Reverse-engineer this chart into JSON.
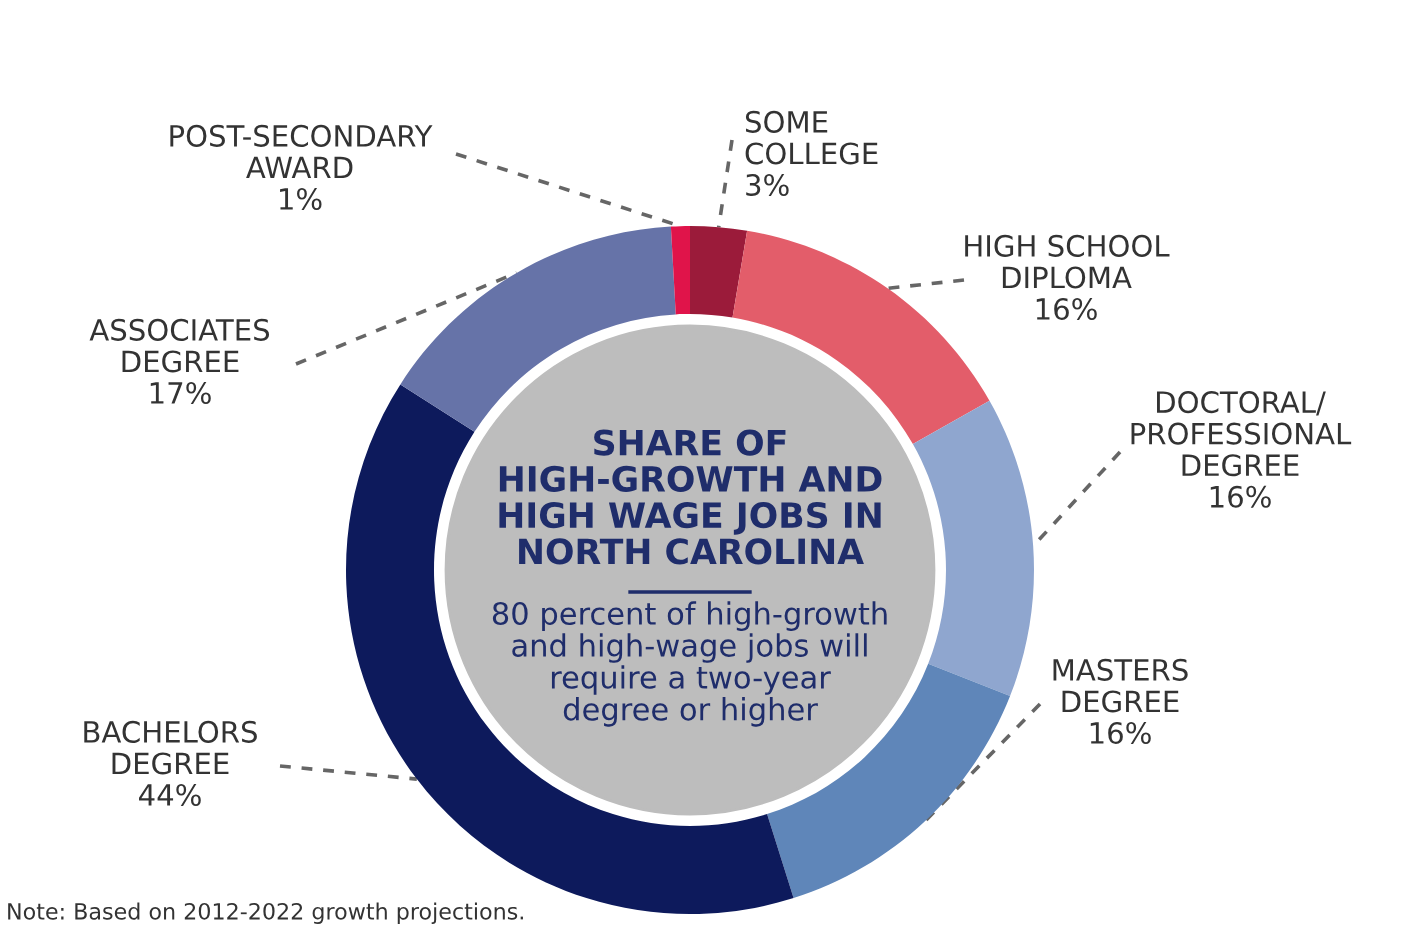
{
  "chart_data": {
    "type": "donut",
    "title": "SHARE OF\nHIGH-GROWTH AND\nHIGH WAGE JOBS IN\nNORTH CAROLINA",
    "subtitle": "80 percent of high-growth\nand high-wage jobs will\nrequire a two-year\ndegree or higher",
    "categories": [
      "SOME\nCOLLEGE",
      "HIGH SCHOOL\nDIPLOMA",
      "DOCTORAL/\nPROFESSIONAL\nDEGREE",
      "MASTERS\nDEGREE",
      "BACHELORS\nDEGREE",
      "ASSOCIATES\nDEGREE",
      "POST-SECONDARY\nAWARD"
    ],
    "values": [
      3,
      16,
      16,
      16,
      44,
      17,
      1
    ],
    "value_labels": [
      "3%",
      "16%",
      "16%",
      "16%",
      "44%",
      "17%",
      "1%"
    ],
    "colors": [
      "#9b1b3a",
      "#e35d6a",
      "#8fa6cf",
      "#5f86b9",
      "#0d1a5c",
      "#6673a8",
      "#e0144a"
    ],
    "annotations": [
      "Note: Based on 2012-2022 growth projections."
    ],
    "legend": false
  }
}
